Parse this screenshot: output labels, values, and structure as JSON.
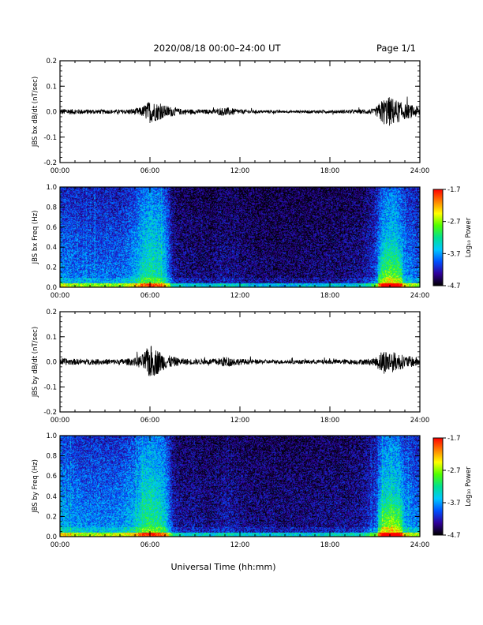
{
  "header": {
    "title": "2020/08/18  00:00–24:00 UT",
    "page": "Page 1/1"
  },
  "xaxis_label": "Universal Time (hh:mm)",
  "colorbar": {
    "ticks": [
      "-1.7",
      "-2.7",
      "-3.7",
      "-4.7"
    ],
    "tick_values": [
      -1.7,
      -2.7,
      -3.7,
      -4.7
    ],
    "label": "Log₁₀ Power",
    "colormap": [
      "#000000",
      "#30009a",
      "#0050ff",
      "#00c8ff",
      "#00e090",
      "#50ff00",
      "#ffff00",
      "#ff8000",
      "#ff0000"
    ]
  },
  "chart_data": [
    {
      "type": "line",
      "ylabel": "JBS bx dB/dt (nT/sec)",
      "xlim": [
        0,
        24
      ],
      "ylim": [
        -0.2,
        0.2
      ],
      "x_ticks": [
        "00:00",
        "06:00",
        "12:00",
        "18:00",
        "24:00"
      ],
      "y_ticks": [
        "0.2",
        "0.1",
        "0.0",
        "-0.1",
        "-0.2"
      ],
      "y_tick_values": [
        0.2,
        0.1,
        0.0,
        -0.1,
        -0.2
      ],
      "series": [
        {
          "x": [
            0,
            1,
            2,
            3,
            4,
            5,
            5.5,
            6,
            6.5,
            7,
            8,
            9,
            10,
            10.5,
            11,
            12,
            13,
            14,
            15,
            16,
            17,
            18,
            19,
            20,
            21,
            21.5,
            22,
            22.5,
            23,
            24
          ],
          "amplitude": [
            0.012,
            0.01,
            0.009,
            0.008,
            0.008,
            0.012,
            0.02,
            0.045,
            0.035,
            0.025,
            0.012,
            0.009,
            0.008,
            0.012,
            0.018,
            0.009,
            0.006,
            0.006,
            0.005,
            0.005,
            0.006,
            0.006,
            0.007,
            0.008,
            0.012,
            0.05,
            0.06,
            0.045,
            0.03,
            0.02
          ]
        }
      ]
    },
    {
      "type": "heatmap",
      "ylabel": "JBS bx Freq (Hz)",
      "xlim": [
        0,
        24
      ],
      "ylim": [
        0,
        1.0
      ],
      "x_ticks": [
        "00:00",
        "06:00",
        "12:00",
        "18:00",
        "24:00"
      ],
      "y_ticks": [
        "1.0",
        "0.8",
        "0.6",
        "0.4",
        "0.2",
        "0.0"
      ],
      "y_tick_values": [
        1.0,
        0.8,
        0.6,
        0.4,
        0.2,
        0.0
      ],
      "zlim": [
        -4.7,
        -1.7
      ],
      "activity_x": [
        0,
        1,
        2,
        3,
        4,
        5,
        5.5,
        6,
        6.5,
        7,
        7.5,
        8,
        9,
        10,
        11,
        12,
        13,
        14,
        15,
        16,
        17,
        18,
        19,
        20,
        21,
        21.5,
        22,
        22.5,
        23,
        24
      ],
      "activity": [
        0.45,
        0.4,
        0.38,
        0.38,
        0.38,
        0.5,
        0.65,
        0.7,
        0.65,
        0.55,
        0.2,
        0.15,
        0.15,
        0.13,
        0.17,
        0.14,
        0.12,
        0.12,
        0.12,
        0.12,
        0.13,
        0.14,
        0.14,
        0.16,
        0.3,
        0.62,
        0.7,
        0.65,
        0.45,
        0.35
      ]
    },
    {
      "type": "line",
      "ylabel": "JBS by dB/dt (nT/sec)",
      "xlim": [
        0,
        24
      ],
      "ylim": [
        -0.2,
        0.2
      ],
      "x_ticks": [
        "00:00",
        "06:00",
        "12:00",
        "18:00",
        "24:00"
      ],
      "y_ticks": [
        "0.2",
        "0.1",
        "0.0",
        "-0.1",
        "-0.2"
      ],
      "y_tick_values": [
        0.2,
        0.1,
        0.0,
        -0.1,
        -0.2
      ],
      "series": [
        {
          "x": [
            0,
            1,
            2,
            3,
            4,
            5,
            5.5,
            6,
            6.5,
            7,
            8,
            9,
            10,
            10.5,
            11,
            12,
            13,
            14,
            15,
            16,
            17,
            18,
            19,
            20,
            21,
            21.5,
            22,
            22.5,
            23,
            24
          ],
          "amplitude": [
            0.014,
            0.012,
            0.011,
            0.011,
            0.011,
            0.016,
            0.03,
            0.07,
            0.05,
            0.03,
            0.014,
            0.011,
            0.011,
            0.014,
            0.022,
            0.012,
            0.009,
            0.008,
            0.008,
            0.008,
            0.009,
            0.009,
            0.01,
            0.01,
            0.015,
            0.05,
            0.045,
            0.035,
            0.025,
            0.018
          ]
        }
      ]
    },
    {
      "type": "heatmap",
      "ylabel": "JBS by Freq (Hz)",
      "xlim": [
        0,
        24
      ],
      "ylim": [
        0,
        1.0
      ],
      "x_ticks": [
        "00:00",
        "06:00",
        "12:00",
        "18:00",
        "24:00"
      ],
      "y_ticks": [
        "1.0",
        "0.8",
        "0.6",
        "0.4",
        "0.2",
        "0.0"
      ],
      "y_tick_values": [
        1.0,
        0.8,
        0.6,
        0.4,
        0.2,
        0.0
      ],
      "zlim": [
        -4.7,
        -1.7
      ],
      "activity_x": [
        0,
        1,
        2,
        3,
        4,
        5,
        5.5,
        6,
        6.5,
        7,
        7.5,
        8,
        9,
        10,
        11,
        12,
        13,
        14,
        15,
        16,
        17,
        18,
        19,
        20,
        21,
        21.5,
        22,
        22.5,
        23,
        24
      ],
      "activity": [
        0.5,
        0.45,
        0.43,
        0.43,
        0.45,
        0.55,
        0.7,
        0.75,
        0.7,
        0.6,
        0.25,
        0.18,
        0.18,
        0.16,
        0.2,
        0.17,
        0.15,
        0.15,
        0.15,
        0.15,
        0.16,
        0.17,
        0.17,
        0.19,
        0.32,
        0.65,
        0.72,
        0.68,
        0.5,
        0.4
      ]
    }
  ]
}
